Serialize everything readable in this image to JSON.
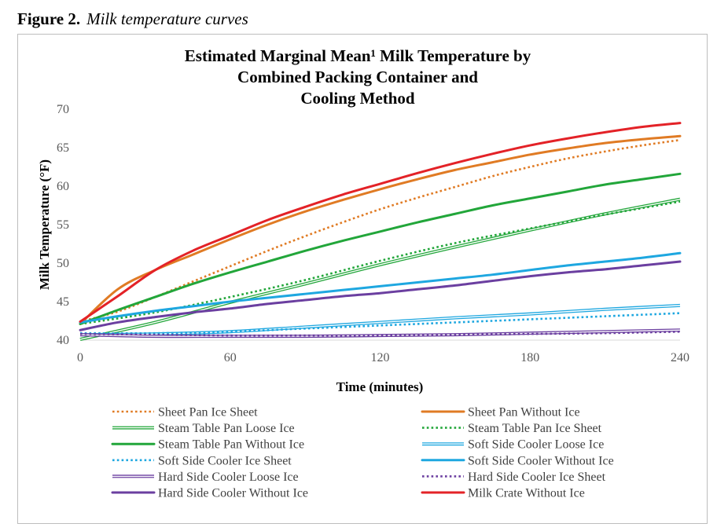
{
  "figure": {
    "number": "Figure 2.",
    "caption": "Milk temperature curves"
  },
  "chart_data": {
    "type": "line",
    "title_lines": [
      "Estimated Marginal Mean¹ Milk Temperature by",
      "Combined Packing Container and",
      "Cooling Method"
    ],
    "xlabel": "Time (minutes)",
    "ylabel": "Milk Temperature (°F)",
    "xlim": [
      0,
      240
    ],
    "ylim": [
      40,
      70
    ],
    "xticks": [
      0,
      60,
      120,
      180,
      240
    ],
    "yticks": [
      40,
      45,
      50,
      55,
      60,
      65,
      70
    ],
    "grid": false,
    "legend_position": "bottom",
    "series": [
      {
        "name": "Sheet Pan Ice Sheet",
        "color": "#E07B24",
        "style": "dotted",
        "x": [
          0,
          15,
          30,
          45,
          60,
          75,
          90,
          105,
          120,
          135,
          150,
          165,
          180,
          195,
          210,
          225,
          240
        ],
        "y": [
          42.3,
          43.6,
          45.5,
          47.5,
          49.5,
          51.5,
          53.4,
          55.2,
          56.9,
          58.4,
          59.8,
          61.2,
          62.4,
          63.5,
          64.4,
          65.2,
          65.9
        ]
      },
      {
        "name": "Sheet Pan Without Ice",
        "color": "#E07B24",
        "style": "solid",
        "x": [
          0,
          15,
          30,
          45,
          60,
          75,
          90,
          105,
          120,
          135,
          150,
          165,
          180,
          195,
          210,
          225,
          240
        ],
        "y": [
          42.0,
          46.5,
          49.0,
          51.0,
          53.0,
          54.9,
          56.6,
          58.1,
          59.5,
          60.8,
          62.0,
          63.0,
          64.0,
          64.8,
          65.5,
          66.0,
          66.4
        ]
      },
      {
        "name": "Steam Table Pan Loose Ice",
        "color": "#22A63A",
        "style": "double",
        "x": [
          0,
          30,
          60,
          90,
          120,
          150,
          180,
          210,
          240
        ],
        "y": [
          40.0,
          42.2,
          44.8,
          47.2,
          49.7,
          52.0,
          54.2,
          56.3,
          58.2
        ]
      },
      {
        "name": "Steam Table Pan Ice Sheet",
        "color": "#22A63A",
        "style": "dotted",
        "x": [
          0,
          30,
          60,
          90,
          120,
          150,
          180,
          210,
          240
        ],
        "y": [
          42.0,
          43.5,
          45.5,
          47.7,
          50.2,
          52.5,
          54.4,
          56.2,
          57.9
        ]
      },
      {
        "name": "Steam Table Pan Without Ice",
        "color": "#22A63A",
        "style": "solid",
        "x": [
          0,
          15,
          30,
          45,
          60,
          75,
          90,
          105,
          120,
          135,
          150,
          165,
          180,
          195,
          210,
          225,
          240
        ],
        "y": [
          42.0,
          43.8,
          45.5,
          47.2,
          48.7,
          50.1,
          51.5,
          52.8,
          54.0,
          55.2,
          56.3,
          57.4,
          58.3,
          59.2,
          60.1,
          60.8,
          61.5
        ]
      },
      {
        "name": "Soft Side Cooler Loose Ice",
        "color": "#1EA7E0",
        "style": "double",
        "x": [
          0,
          30,
          60,
          90,
          120,
          150,
          180,
          210,
          240
        ],
        "y": [
          40.6,
          40.7,
          41.0,
          41.6,
          42.2,
          42.8,
          43.3,
          43.9,
          44.4
        ]
      },
      {
        "name": "Soft Side Cooler Ice Sheet",
        "color": "#1EA7E0",
        "style": "dotted",
        "x": [
          0,
          30,
          60,
          90,
          120,
          150,
          180,
          210,
          240
        ],
        "y": [
          40.8,
          40.8,
          41.0,
          41.4,
          41.8,
          42.2,
          42.6,
          43.0,
          43.4
        ]
      },
      {
        "name": "Soft Side Cooler Without Ice",
        "color": "#1EA7E0",
        "style": "solid",
        "x": [
          0,
          15,
          30,
          45,
          60,
          75,
          90,
          105,
          120,
          135,
          150,
          165,
          180,
          195,
          210,
          225,
          240
        ],
        "y": [
          42.2,
          43.0,
          43.7,
          44.3,
          44.9,
          45.4,
          45.9,
          46.4,
          46.9,
          47.4,
          47.9,
          48.4,
          49.0,
          49.6,
          50.1,
          50.6,
          51.2
        ]
      },
      {
        "name": "Hard Side Cooler Loose Ice",
        "color": "#6B3FA0",
        "style": "double",
        "x": [
          0,
          30,
          60,
          90,
          120,
          150,
          180,
          210,
          240
        ],
        "y": [
          40.6,
          40.4,
          40.4,
          40.4,
          40.5,
          40.6,
          40.8,
          41.0,
          41.2
        ]
      },
      {
        "name": "Hard Side Cooler Ice Sheet",
        "color": "#6B3FA0",
        "style": "dotted",
        "x": [
          0,
          30,
          60,
          90,
          120,
          150,
          180,
          210,
          240
        ],
        "y": [
          40.7,
          40.6,
          40.5,
          40.5,
          40.5,
          40.6,
          40.7,
          40.8,
          41.0
        ]
      },
      {
        "name": "Hard Side Cooler Without Ice",
        "color": "#6B3FA0",
        "style": "solid",
        "x": [
          0,
          15,
          30,
          45,
          60,
          75,
          90,
          105,
          120,
          135,
          150,
          165,
          180,
          195,
          210,
          225,
          240
        ],
        "y": [
          41.2,
          42.2,
          42.9,
          43.5,
          44.0,
          44.6,
          45.1,
          45.6,
          46.0,
          46.5,
          47.0,
          47.6,
          48.2,
          48.7,
          49.1,
          49.6,
          50.1
        ]
      },
      {
        "name": "Milk Crate Without Ice",
        "color": "#E32227",
        "style": "solid",
        "x": [
          0,
          15,
          30,
          45,
          60,
          75,
          90,
          105,
          120,
          135,
          150,
          165,
          180,
          195,
          210,
          225,
          240
        ],
        "y": [
          42.3,
          45.6,
          49.0,
          51.5,
          53.5,
          55.5,
          57.2,
          58.8,
          60.2,
          61.6,
          62.9,
          64.1,
          65.2,
          66.1,
          66.9,
          67.6,
          68.1
        ]
      }
    ]
  }
}
